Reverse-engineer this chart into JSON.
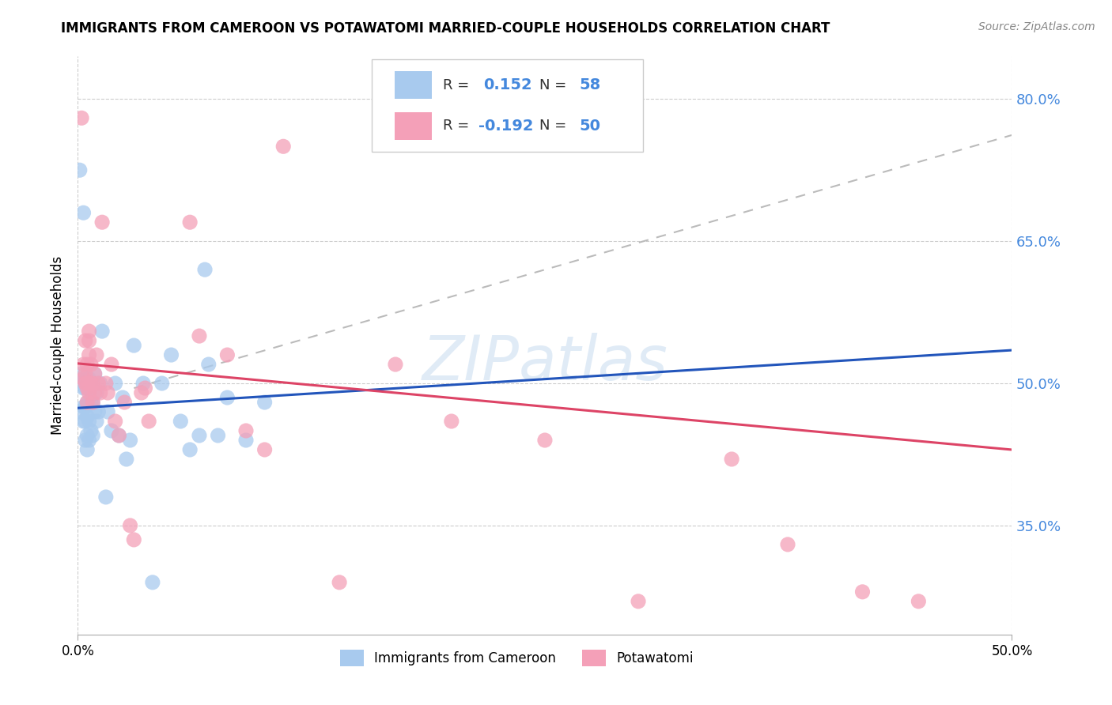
{
  "title": "IMMIGRANTS FROM CAMEROON VS POTAWATOMI MARRIED-COUPLE HOUSEHOLDS CORRELATION CHART",
  "source": "Source: ZipAtlas.com",
  "ylabel": "Married-couple Households",
  "xlim": [
    0.0,
    0.5
  ],
  "ylim": [
    0.235,
    0.845
  ],
  "y_tick_vals": [
    0.35,
    0.5,
    0.65,
    0.8
  ],
  "y_tick_labels": [
    "35.0%",
    "50.0%",
    "65.0%",
    "80.0%"
  ],
  "x_tick_vals": [
    0.0,
    0.5
  ],
  "x_tick_labels": [
    "0.0%",
    "50.0%"
  ],
  "blue_color": "#A8CAEE",
  "pink_color": "#F4A0B8",
  "blue_line_color": "#2255BB",
  "pink_line_color": "#DD4466",
  "dashed_color": "#BBBBBB",
  "tick_color_right": "#4488DD",
  "watermark": "ZIPatlas",
  "r1": "0.152",
  "n1": "58",
  "r2": "-0.192",
  "n2": "50",
  "blue_line": [
    0.0,
    0.5,
    0.474,
    0.535
  ],
  "pink_line": [
    0.0,
    0.5,
    0.521,
    0.43
  ],
  "dashed_line": [
    0.03,
    0.5,
    0.495,
    0.762
  ],
  "blue_x": [
    0.001,
    0.002,
    0.002,
    0.003,
    0.003,
    0.003,
    0.003,
    0.003,
    0.004,
    0.004,
    0.004,
    0.004,
    0.004,
    0.005,
    0.005,
    0.005,
    0.005,
    0.005,
    0.005,
    0.006,
    0.006,
    0.006,
    0.006,
    0.006,
    0.007,
    0.007,
    0.007,
    0.008,
    0.008,
    0.009,
    0.009,
    0.01,
    0.01,
    0.011,
    0.012,
    0.013,
    0.015,
    0.016,
    0.018,
    0.02,
    0.022,
    0.024,
    0.026,
    0.028,
    0.03,
    0.035,
    0.04,
    0.045,
    0.05,
    0.055,
    0.06,
    0.065,
    0.068,
    0.07,
    0.075,
    0.08,
    0.09,
    0.1
  ],
  "blue_y": [
    0.725,
    0.47,
    0.51,
    0.46,
    0.475,
    0.495,
    0.505,
    0.68,
    0.44,
    0.46,
    0.475,
    0.495,
    0.505,
    0.43,
    0.445,
    0.465,
    0.48,
    0.495,
    0.505,
    0.44,
    0.46,
    0.48,
    0.495,
    0.505,
    0.45,
    0.48,
    0.5,
    0.445,
    0.48,
    0.47,
    0.51,
    0.46,
    0.49,
    0.47,
    0.5,
    0.555,
    0.38,
    0.47,
    0.45,
    0.5,
    0.445,
    0.485,
    0.42,
    0.44,
    0.54,
    0.5,
    0.29,
    0.5,
    0.53,
    0.46,
    0.43,
    0.445,
    0.62,
    0.52,
    0.445,
    0.485,
    0.44,
    0.48
  ],
  "pink_x": [
    0.002,
    0.003,
    0.004,
    0.004,
    0.005,
    0.005,
    0.005,
    0.006,
    0.006,
    0.006,
    0.007,
    0.007,
    0.008,
    0.008,
    0.009,
    0.009,
    0.01,
    0.011,
    0.012,
    0.013,
    0.015,
    0.016,
    0.018,
    0.02,
    0.022,
    0.025,
    0.028,
    0.03,
    0.034,
    0.036,
    0.038,
    0.06,
    0.065,
    0.08,
    0.09,
    0.1,
    0.11,
    0.14,
    0.17,
    0.2,
    0.25,
    0.3,
    0.35,
    0.38,
    0.42,
    0.45,
    0.003,
    0.004,
    0.005,
    0.006
  ],
  "pink_y": [
    0.78,
    0.52,
    0.51,
    0.545,
    0.48,
    0.5,
    0.52,
    0.53,
    0.545,
    0.555,
    0.5,
    0.52,
    0.48,
    0.5,
    0.49,
    0.51,
    0.53,
    0.5,
    0.49,
    0.67,
    0.5,
    0.49,
    0.52,
    0.46,
    0.445,
    0.48,
    0.35,
    0.335,
    0.49,
    0.495,
    0.46,
    0.67,
    0.55,
    0.53,
    0.45,
    0.43,
    0.75,
    0.29,
    0.52,
    0.46,
    0.44,
    0.27,
    0.42,
    0.33,
    0.28,
    0.27,
    0.505,
    0.5,
    0.495,
    0.49
  ]
}
